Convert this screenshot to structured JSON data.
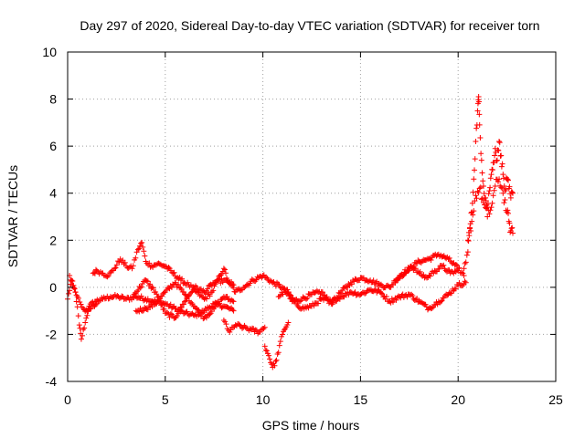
{
  "chart_data": {
    "type": "scatter",
    "title": "Day 297 of 2020, Sidereal Day-to-day VTEC variation (SDTVAR) for receiver torn",
    "xlabel": "GPS time / hours",
    "ylabel": "SDTVAR / TECUs",
    "xlim": [
      0,
      25
    ],
    "ylim": [
      -4,
      10
    ],
    "xticks": [
      "0",
      "5",
      "10",
      "15",
      "20",
      "25"
    ],
    "yticks": [
      "-4",
      "-2",
      "0",
      "2",
      "4",
      "6",
      "8",
      "10"
    ],
    "grid": true,
    "marker": "plus",
    "color": "#ff0000",
    "series": [
      {
        "name": "SDTVAR",
        "tracks": [
          [
            [
              0.0,
              -0.5
            ],
            [
              0.2,
              0.3
            ],
            [
              0.4,
              -0.2
            ],
            [
              0.6,
              -1.6
            ],
            [
              0.7,
              -2.2
            ],
            [
              0.9,
              -1.5
            ],
            [
              1.1,
              -0.8
            ],
            [
              1.4,
              -0.6
            ],
            [
              1.8,
              -0.5
            ],
            [
              2.2,
              -0.4
            ],
            [
              2.6,
              -0.4
            ],
            [
              3.0,
              -0.5
            ],
            [
              3.5,
              -0.4
            ],
            [
              4.0,
              -0.5
            ],
            [
              4.5,
              -0.6
            ],
            [
              5.0,
              -0.7
            ],
            [
              5.5,
              -0.9
            ],
            [
              6.0,
              -1.1
            ],
            [
              6.5,
              -1.2
            ],
            [
              7.0,
              -1.0
            ],
            [
              7.5,
              -0.7
            ],
            [
              8.0,
              -0.8
            ],
            [
              8.5,
              -1.0
            ]
          ],
          [
            [
              0.1,
              0.5
            ],
            [
              0.3,
              0.0
            ],
            [
              0.5,
              -0.4
            ],
            [
              0.8,
              -0.9
            ],
            [
              1.0,
              -1.0
            ],
            [
              1.2,
              -0.9
            ],
            [
              1.5,
              -0.7
            ]
          ],
          [
            [
              1.3,
              0.6
            ],
            [
              1.5,
              0.7
            ],
            [
              1.8,
              0.6
            ],
            [
              2.1,
              0.5
            ],
            [
              2.4,
              0.8
            ],
            [
              2.7,
              1.2
            ],
            [
              3.0,
              0.9
            ],
            [
              3.3,
              0.8
            ],
            [
              3.6,
              1.6
            ],
            [
              3.8,
              1.9
            ],
            [
              4.0,
              1.1
            ],
            [
              4.3,
              0.9
            ],
            [
              4.6,
              1.0
            ],
            [
              5.0,
              0.9
            ],
            [
              5.4,
              0.6
            ],
            [
              5.8,
              0.3
            ],
            [
              6.2,
              0.1
            ],
            [
              6.6,
              -0.2
            ],
            [
              7.0,
              -0.5
            ],
            [
              7.4,
              -0.2
            ],
            [
              7.8,
              0.5
            ],
            [
              8.0,
              0.8
            ],
            [
              8.2,
              0.3
            ],
            [
              8.6,
              -0.2
            ],
            [
              9.0,
              0.0
            ],
            [
              9.5,
              0.3
            ],
            [
              10.0,
              0.5
            ],
            [
              10.5,
              0.2
            ],
            [
              11.0,
              0.0
            ],
            [
              11.5,
              -0.6
            ],
            [
              12.0,
              -0.5
            ],
            [
              12.5,
              -0.3
            ],
            [
              13.0,
              -0.2
            ],
            [
              13.5,
              -0.7
            ],
            [
              14.0,
              -0.2
            ],
            [
              14.5,
              0.2
            ],
            [
              15.0,
              0.4
            ],
            [
              15.5,
              0.3
            ],
            [
              16.0,
              0.1
            ],
            [
              16.5,
              0.0
            ],
            [
              17.0,
              0.5
            ],
            [
              17.5,
              0.8
            ],
            [
              18.0,
              1.1
            ],
            [
              18.5,
              1.2
            ],
            [
              19.0,
              1.4
            ],
            [
              19.5,
              1.2
            ],
            [
              20.0,
              0.8
            ],
            [
              20.3,
              0.5
            ]
          ],
          [
            [
              3.5,
              -1.0
            ],
            [
              4.0,
              -0.9
            ],
            [
              4.5,
              -0.7
            ],
            [
              5.0,
              -0.2
            ],
            [
              5.5,
              0.2
            ],
            [
              6.0,
              -0.3
            ],
            [
              6.5,
              -0.8
            ],
            [
              7.0,
              -1.3
            ],
            [
              7.5,
              -0.9
            ],
            [
              8.0,
              -0.4
            ],
            [
              8.5,
              -0.6
            ]
          ],
          [
            [
              3.4,
              -0.3
            ],
            [
              4.0,
              0.3
            ],
            [
              4.5,
              -0.2
            ],
            [
              5.0,
              -1.1
            ],
            [
              5.5,
              -1.3
            ],
            [
              6.0,
              -0.6
            ],
            [
              6.5,
              0.0
            ],
            [
              7.0,
              -0.2
            ],
            [
              7.5,
              0.2
            ],
            [
              8.0,
              0.3
            ],
            [
              8.5,
              0.1
            ]
          ],
          [
            [
              8.0,
              -1.4
            ],
            [
              8.3,
              -1.9
            ],
            [
              8.6,
              -1.6
            ],
            [
              9.0,
              -1.7
            ],
            [
              9.4,
              -1.8
            ],
            [
              9.8,
              -1.9
            ],
            [
              10.1,
              -1.7
            ]
          ],
          [
            [
              10.1,
              -2.5
            ],
            [
              10.3,
              -2.9
            ],
            [
              10.5,
              -3.4
            ],
            [
              10.7,
              -3.1
            ],
            [
              10.9,
              -2.3
            ],
            [
              11.1,
              -1.8
            ],
            [
              11.3,
              -1.5
            ]
          ],
          [
            [
              10.8,
              -0.4
            ],
            [
              11.2,
              -0.1
            ],
            [
              11.6,
              -0.6
            ],
            [
              12.0,
              -0.9
            ],
            [
              12.5,
              -0.8
            ],
            [
              13.0,
              -0.5
            ],
            [
              13.5,
              -0.6
            ],
            [
              14.0,
              -0.4
            ],
            [
              14.5,
              -0.2
            ],
            [
              15.0,
              -0.3
            ],
            [
              15.5,
              -0.1
            ],
            [
              16.0,
              -0.2
            ],
            [
              16.5,
              -0.6
            ],
            [
              17.0,
              -0.4
            ],
            [
              17.5,
              -0.3
            ],
            [
              18.0,
              -0.6
            ],
            [
              18.5,
              -0.9
            ],
            [
              19.0,
              -0.6
            ],
            [
              19.5,
              -0.3
            ],
            [
              20.0,
              0.1
            ],
            [
              20.4,
              0.2
            ]
          ],
          [
            [
              16.8,
              0.3
            ],
            [
              17.2,
              0.5
            ],
            [
              17.6,
              0.9
            ],
            [
              18.0,
              0.6
            ],
            [
              18.4,
              0.4
            ],
            [
              18.8,
              0.7
            ],
            [
              19.2,
              0.9
            ],
            [
              19.6,
              0.6
            ],
            [
              20.0,
              0.7
            ]
          ],
          [
            [
              20.3,
              0.8
            ],
            [
              20.5,
              1.5
            ],
            [
              20.6,
              2.5
            ],
            [
              20.7,
              3.2
            ],
            [
              20.8,
              4.6
            ],
            [
              20.9,
              6.2
            ],
            [
              21.0,
              7.5
            ],
            [
              21.05,
              8.1
            ],
            [
              21.1,
              6.9
            ],
            [
              21.2,
              5.4
            ],
            [
              21.3,
              4.3
            ],
            [
              21.4,
              3.8
            ],
            [
              21.5,
              3.4
            ],
            [
              21.6,
              4.1
            ],
            [
              21.7,
              4.8
            ],
            [
              21.8,
              5.3
            ],
            [
              21.9,
              5.9
            ],
            [
              22.0,
              5.4
            ],
            [
              22.1,
              6.2
            ],
            [
              22.2,
              5.6
            ],
            [
              22.3,
              4.8
            ],
            [
              22.4,
              4.1
            ],
            [
              22.5,
              4.6
            ],
            [
              22.6,
              4.2
            ],
            [
              22.7,
              3.8
            ],
            [
              22.8,
              4.0
            ]
          ],
          [
            [
              20.5,
              2.0
            ],
            [
              20.7,
              2.8
            ],
            [
              20.9,
              3.9
            ],
            [
              21.1,
              4.2
            ],
            [
              21.3,
              3.6
            ],
            [
              21.5,
              3.0
            ],
            [
              21.7,
              3.4
            ],
            [
              21.9,
              4.3
            ],
            [
              22.1,
              4.6
            ],
            [
              22.3,
              4.0
            ],
            [
              22.5,
              3.2
            ],
            [
              22.6,
              2.8
            ],
            [
              22.7,
              2.4
            ],
            [
              22.8,
              2.3
            ]
          ]
        ]
      }
    ]
  }
}
